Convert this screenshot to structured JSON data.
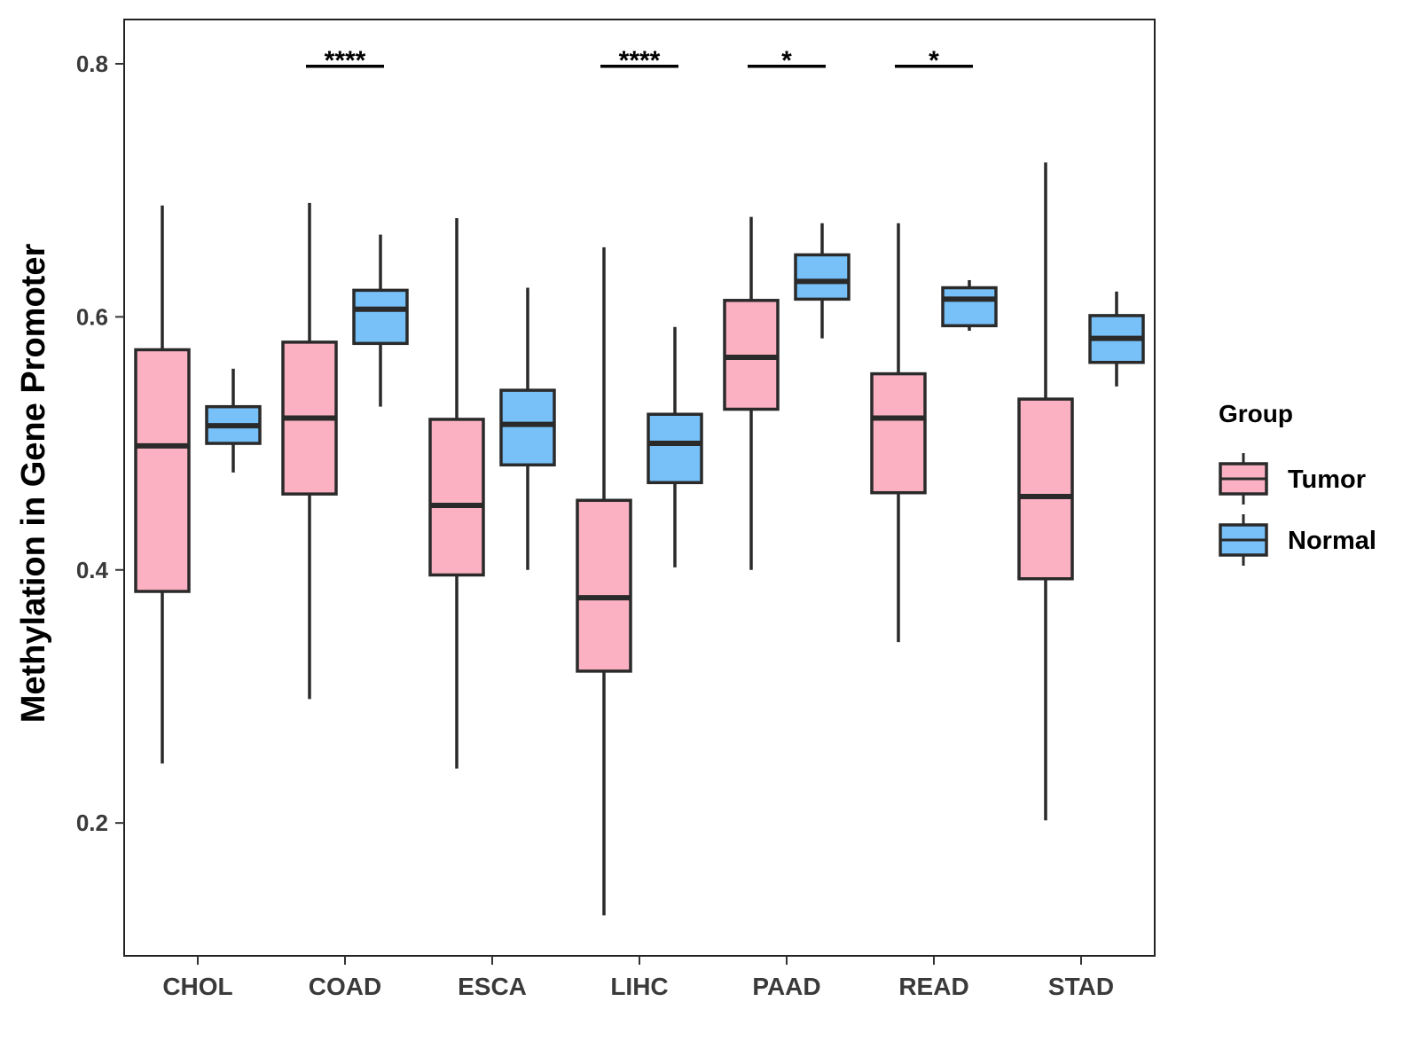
{
  "chart_data": {
    "type": "boxplot",
    "ylabel": "Methylation in Gene Promoter",
    "xlabel": "",
    "ylim": [
      0.095,
      0.835
    ],
    "yticks": [
      0.2,
      0.4,
      0.6,
      0.8
    ],
    "ytick_labels": [
      "0.2",
      "0.4",
      "0.6",
      "0.8"
    ],
    "categories": [
      "CHOL",
      "COAD",
      "ESCA",
      "LIHC",
      "PAAD",
      "READ",
      "STAD"
    ],
    "legend": {
      "title": "Group",
      "position": "right",
      "entries": [
        "Tumor",
        "Normal"
      ]
    },
    "series": [
      {
        "name": "Tumor",
        "color": "#fbb1c2",
        "boxes": [
          {
            "min": 0.247,
            "q1": 0.383,
            "median": 0.498,
            "q3": 0.574,
            "max": 0.688
          },
          {
            "min": 0.298,
            "q1": 0.46,
            "median": 0.52,
            "q3": 0.58,
            "max": 0.69
          },
          {
            "min": 0.243,
            "q1": 0.396,
            "median": 0.451,
            "q3": 0.519,
            "max": 0.678
          },
          {
            "min": 0.127,
            "q1": 0.32,
            "median": 0.378,
            "q3": 0.455,
            "max": 0.655
          },
          {
            "min": 0.4,
            "q1": 0.527,
            "median": 0.568,
            "q3": 0.613,
            "max": 0.679
          },
          {
            "min": 0.343,
            "q1": 0.461,
            "median": 0.52,
            "q3": 0.555,
            "max": 0.674
          },
          {
            "min": 0.202,
            "q1": 0.393,
            "median": 0.458,
            "q3": 0.535,
            "max": 0.722
          }
        ]
      },
      {
        "name": "Normal",
        "color": "#77c1f8",
        "boxes": [
          {
            "min": 0.477,
            "q1": 0.5,
            "median": 0.514,
            "q3": 0.529,
            "max": 0.559
          },
          {
            "min": 0.529,
            "q1": 0.579,
            "median": 0.606,
            "q3": 0.621,
            "max": 0.665
          },
          {
            "min": 0.4,
            "q1": 0.483,
            "median": 0.515,
            "q3": 0.542,
            "max": 0.623
          },
          {
            "min": 0.402,
            "q1": 0.469,
            "median": 0.5,
            "q3": 0.523,
            "max": 0.592
          },
          {
            "min": 0.583,
            "q1": 0.614,
            "median": 0.628,
            "q3": 0.649,
            "max": 0.674
          },
          {
            "min": 0.589,
            "q1": 0.593,
            "median": 0.614,
            "q3": 0.623,
            "max": 0.629
          },
          {
            "min": 0.545,
            "q1": 0.564,
            "median": 0.583,
            "q3": 0.601,
            "max": 0.62
          }
        ]
      }
    ],
    "significance": [
      {
        "category": "COAD",
        "label": "****"
      },
      {
        "category": "LIHC",
        "label": "****"
      },
      {
        "category": "PAAD",
        "label": "*"
      },
      {
        "category": "READ",
        "label": "*"
      }
    ],
    "significance_y": 0.798
  }
}
